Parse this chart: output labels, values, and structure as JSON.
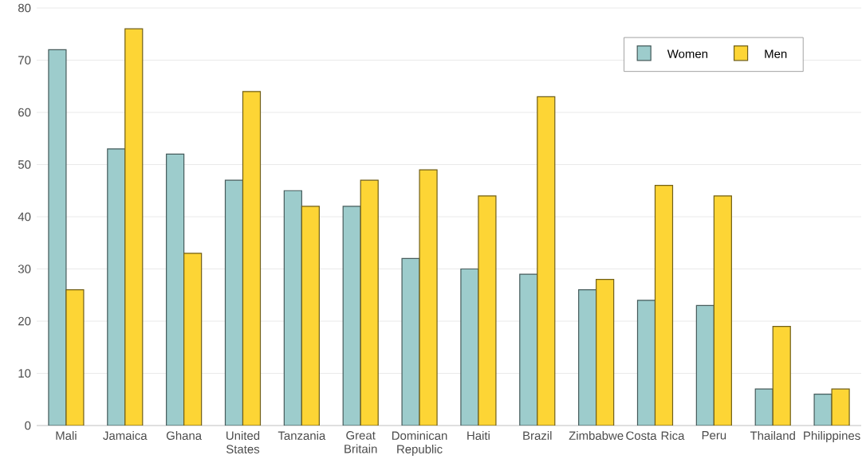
{
  "chart_data": {
    "type": "bar",
    "categories": [
      "Mali",
      "Jamaica",
      "Ghana",
      "United States",
      "Tanzania",
      "Great Britain",
      "Dominican Republic",
      "Haiti",
      "Brazil",
      "Zimbabwe",
      "Costa Rica",
      "Peru",
      "Thailand",
      "Philippines"
    ],
    "series": [
      {
        "name": "Women",
        "color": "#9dcccc",
        "values": [
          72,
          53,
          52,
          47,
          45,
          42,
          32,
          30,
          29,
          26,
          24,
          23,
          7,
          6
        ]
      },
      {
        "name": "Men",
        "color": "#fdd535",
        "values": [
          26,
          76,
          33,
          64,
          42,
          47,
          49,
          44,
          63,
          28,
          46,
          44,
          19,
          7
        ]
      }
    ],
    "ylim": [
      0,
      80
    ],
    "yticks": [
      0,
      10,
      20,
      30,
      40,
      50,
      60,
      70,
      80
    ],
    "grid": "y",
    "legend": "top right"
  }
}
